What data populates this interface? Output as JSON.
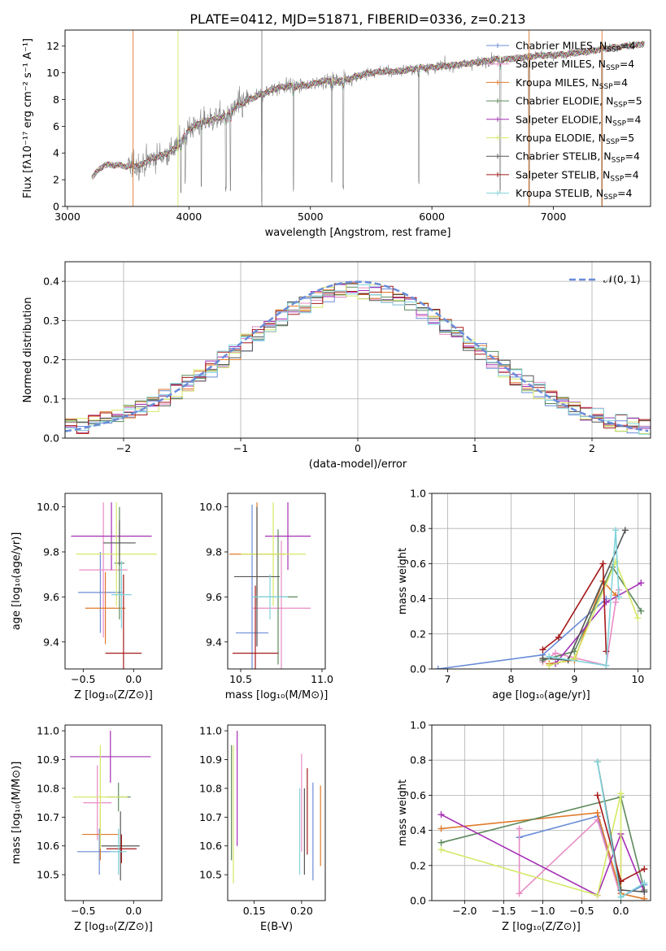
{
  "figure_title": "PLATE=0412, MJD=51871, FIBERID=0336, z=0.213",
  "colors": {
    "Chabrier MILES": "#6a8cd8",
    "Salpeter MILES": "#e88cc4",
    "Kroupa MILES": "#e07a2a",
    "Chabrier ELODIE": "#5d8a5d",
    "Salpeter ELODIE": "#a52fb5",
    "Kroupa ELODIE": "#d4e866",
    "Chabrier STELIB": "#555555",
    "Salpeter STELIB": "#a51a1a",
    "Kroupa STELIB": "#80d4dc",
    "data": "#808080",
    "gaussian": "#6a8cd8"
  },
  "chart_data": [
    {
      "id": "spectrum",
      "type": "line",
      "xlabel": "wavelength [Angstrom, rest frame]",
      "ylabel": "Flux [fλ10⁻¹⁷ erg cm⁻² s⁻¹ A⁻¹]",
      "xlim": [
        2980,
        7800
      ],
      "ylim": [
        0,
        13.2
      ],
      "xticks": [
        3000,
        4000,
        5000,
        6000,
        7000
      ],
      "yticks": [
        0,
        2,
        4,
        6,
        8,
        10,
        12
      ],
      "grid": false,
      "legend_position": "right",
      "legend": [
        {
          "label": "Chabrier MILES, N",
          "sub": "SSP",
          "tail": "=4",
          "model": "Chabrier MILES"
        },
        {
          "label": "Salpeter MILES, N",
          "sub": "SSP",
          "tail": "=4",
          "model": "Salpeter MILES"
        },
        {
          "label": "Kroupa MILES, N",
          "sub": "SSP",
          "tail": "=4",
          "model": "Kroupa MILES"
        },
        {
          "label": "Chabrier ELODIE, N",
          "sub": "SSP",
          "tail": "=5",
          "model": "Chabrier ELODIE"
        },
        {
          "label": "Salpeter ELODIE, N",
          "sub": "SSP",
          "tail": "=4",
          "model": "Salpeter ELODIE"
        },
        {
          "label": "Kroupa ELODIE, N",
          "sub": "SSP",
          "tail": "=5",
          "model": "Kroupa ELODIE"
        },
        {
          "label": "Chabrier STELIB, N",
          "sub": "SSP",
          "tail": "=4",
          "model": "Chabrier STELIB"
        },
        {
          "label": "Salpeter STELIB, N",
          "sub": "SSP",
          "tail": "=4",
          "model": "Salpeter STELIB"
        },
        {
          "label": "Kroupa STELIB, N",
          "sub": "SSP",
          "tail": "=4",
          "model": "Kroupa STELIB"
        }
      ],
      "continuum": [
        [
          3200,
          2.2
        ],
        [
          3300,
          3.1
        ],
        [
          3400,
          3.1
        ],
        [
          3500,
          3.0
        ],
        [
          3600,
          3.1
        ],
        [
          3700,
          3.6
        ],
        [
          3800,
          3.9
        ],
        [
          3900,
          4.4
        ],
        [
          4000,
          5.8
        ],
        [
          4100,
          6.3
        ],
        [
          4200,
          6.5
        ],
        [
          4300,
          6.8
        ],
        [
          4400,
          7.5
        ],
        [
          4500,
          8.0
        ],
        [
          4600,
          8.4
        ],
        [
          4700,
          8.8
        ],
        [
          4800,
          9.0
        ],
        [
          4900,
          9.0
        ],
        [
          5000,
          9.1
        ],
        [
          5100,
          9.4
        ],
        [
          5200,
          9.4
        ],
        [
          5300,
          9.5
        ],
        [
          5400,
          9.8
        ],
        [
          5500,
          10.0
        ],
        [
          5600,
          10.1
        ],
        [
          5700,
          10.1
        ],
        [
          5800,
          10.2
        ],
        [
          5900,
          10.4
        ],
        [
          6000,
          10.4
        ],
        [
          6100,
          10.5
        ],
        [
          6200,
          10.6
        ],
        [
          6300,
          10.7
        ],
        [
          6400,
          10.8
        ],
        [
          6500,
          11.0
        ],
        [
          6600,
          11.0
        ],
        [
          6700,
          11.1
        ],
        [
          6800,
          11.2
        ],
        [
          6900,
          11.3
        ],
        [
          7000,
          11.3
        ],
        [
          7100,
          11.4
        ],
        [
          7200,
          11.5
        ],
        [
          7300,
          11.6
        ],
        [
          7400,
          11.8
        ],
        [
          7500,
          11.9
        ],
        [
          7600,
          12.0
        ],
        [
          7700,
          12.1
        ],
        [
          7750,
          12.2
        ]
      ],
      "absorption": [
        [
          3934,
          1.0
        ],
        [
          3969,
          1.5
        ],
        [
          4102,
          1.2
        ],
        [
          4304,
          1.0
        ],
        [
          4341,
          1.0
        ],
        [
          4600,
          0.0
        ],
        [
          4861,
          1.0
        ],
        [
          5175,
          1.5
        ],
        [
          5270,
          1.2
        ],
        [
          5893,
          1.5
        ],
        [
          6563,
          1.0
        ],
        [
          6800,
          0.2
        ],
        [
          7400,
          0.0
        ]
      ]
    },
    {
      "id": "residuals",
      "type": "histogram",
      "xlabel": "(data-model)/error",
      "ylabel": "Normed distribution",
      "xlim": [
        -2.5,
        2.5
      ],
      "ylim": [
        0,
        0.45
      ],
      "xticks": [
        -2,
        -1,
        0,
        1,
        2
      ],
      "yticks": [
        0.0,
        0.1,
        0.2,
        0.3,
        0.4
      ],
      "grid": true,
      "bin_width": 0.1,
      "legend": [
        {
          "label": "𝒩(0, 1)",
          "model": "gaussian"
        }
      ],
      "legend_position": "top-right"
    },
    {
      "id": "age_vs_Z",
      "type": "errorbar",
      "xlabel": "Z [log₁₀(Z/Z⊙)]",
      "ylabel": "age  [log₁₀(age/yr)]",
      "xlim": [
        -0.68,
        0.28
      ],
      "ylim": [
        9.28,
        10.06
      ],
      "xticks": [
        -0.5,
        0.0
      ],
      "yticks": [
        9.4,
        9.6,
        9.8,
        10.0
      ],
      "points": [
        {
          "model": "Chabrier MILES",
          "x": -0.33,
          "xerr": 0.22,
          "y": 9.62,
          "yerr": 0.18
        },
        {
          "model": "Salpeter MILES",
          "x": -0.3,
          "xerr": 0.24,
          "y": 9.72,
          "yerr": 0.3
        },
        {
          "model": "Kroupa MILES",
          "x": -0.28,
          "xerr": 0.2,
          "y": 9.55,
          "yerr": 0.16
        },
        {
          "model": "Chabrier ELODIE",
          "x": -0.14,
          "xerr": 0.05,
          "y": 9.75,
          "yerr": 0.25
        },
        {
          "model": "Salpeter ELODIE",
          "x": -0.22,
          "xerr": 0.4,
          "y": 9.87,
          "yerr": 0.15
        },
        {
          "model": "Kroupa ELODIE",
          "x": -0.17,
          "xerr": 0.4,
          "y": 9.79,
          "yerr": 0.23
        },
        {
          "model": "Chabrier STELIB",
          "x": -0.14,
          "xerr": 0.16,
          "y": 9.84,
          "yerr": 0.1
        },
        {
          "model": "Salpeter STELIB",
          "x": -0.1,
          "xerr": 0.18,
          "y": 9.35,
          "yerr": 0.35
        },
        {
          "model": "Kroupa STELIB",
          "x": -0.12,
          "xerr": 0.1,
          "y": 9.61,
          "yerr": 0.15
        }
      ]
    },
    {
      "id": "age_vs_mass",
      "type": "errorbar",
      "xlabel": "mass [log₁₀(M/M⊙)]",
      "ylabel": "",
      "xlim": [
        10.42,
        11.02
      ],
      "ylim": [
        9.28,
        10.06
      ],
      "xticks": [
        10.5,
        11.0
      ],
      "yticks": [
        9.4,
        9.6,
        9.8,
        10.0
      ],
      "points": [
        {
          "model": "Chabrier MILES",
          "x": 10.57,
          "xerr": 0.1,
          "y": 9.44,
          "yerr": 0.57
        },
        {
          "model": "Salpeter MILES",
          "x": 10.75,
          "xerr": 0.18,
          "y": 9.55,
          "yerr": 0.3
        },
        {
          "model": "Kroupa MILES",
          "x": 10.6,
          "xerr": 0.17,
          "y": 9.79,
          "yerr": 0.23
        },
        {
          "model": "Chabrier ELODIE",
          "x": 10.73,
          "xerr": 0.12,
          "y": 9.6,
          "yerr": 0.3
        },
        {
          "model": "Salpeter ELODIE",
          "x": 10.79,
          "xerr": 0.14,
          "y": 9.87,
          "yerr": 0.15
        },
        {
          "model": "Kroupa ELODIE",
          "x": 10.7,
          "xerr": 0.2,
          "y": 9.79,
          "yerr": 0.23
        },
        {
          "model": "Chabrier STELIB",
          "x": 10.6,
          "xerr": 0.14,
          "y": 9.69,
          "yerr": 0.31
        },
        {
          "model": "Salpeter STELIB",
          "x": 10.59,
          "xerr": 0.14,
          "y": 9.35,
          "yerr": 0.3
        },
        {
          "model": "Kroupa STELIB",
          "x": 10.68,
          "xerr": 0.11,
          "y": 9.6,
          "yerr": 0.1
        }
      ]
    },
    {
      "id": "massweight_vs_age",
      "type": "line",
      "xlabel": "age  [log₁₀(age/yr)]",
      "ylabel": "mass weight",
      "xlim": [
        6.75,
        10.2
      ],
      "ylim": [
        0,
        1.0
      ],
      "xticks": [
        7,
        8,
        9,
        10
      ],
      "yticks": [
        0.0,
        0.2,
        0.4,
        0.6,
        0.8,
        1.0
      ],
      "grid": true,
      "series": [
        {
          "model": "Chabrier MILES",
          "x": [
            6.85,
            8.5,
            9.5
          ],
          "y": [
            0.0,
            0.08,
            0.4
          ]
        },
        {
          "model": "Salpeter MILES",
          "x": [
            8.5,
            8.7,
            9.5,
            9.65,
            9.7
          ],
          "y": [
            0.04,
            0.09,
            0.02,
            0.38,
            0.45
          ]
        },
        {
          "model": "Kroupa MILES",
          "x": [
            8.6,
            9.0,
            9.45,
            9.65
          ],
          "y": [
            0.03,
            0.05,
            0.5,
            0.42
          ]
        },
        {
          "model": "Chabrier ELODIE",
          "x": [
            8.5,
            9.0,
            9.6,
            10.05
          ],
          "y": [
            0.05,
            0.1,
            0.58,
            0.33
          ]
        },
        {
          "model": "Salpeter ELODIE",
          "x": [
            8.7,
            9.5,
            10.05
          ],
          "y": [
            0.03,
            0.38,
            0.49
          ]
        },
        {
          "model": "Kroupa ELODIE",
          "x": [
            8.6,
            9.0,
            9.65,
            10.0
          ],
          "y": [
            0.02,
            0.06,
            0.61,
            0.29
          ]
        },
        {
          "model": "Chabrier STELIB",
          "x": [
            8.5,
            8.9,
            9.8
          ],
          "y": [
            0.06,
            0.05,
            0.79
          ]
        },
        {
          "model": "Salpeter STELIB",
          "x": [
            8.5,
            8.75,
            9.45,
            9.5
          ],
          "y": [
            0.11,
            0.18,
            0.6,
            0.1
          ]
        },
        {
          "model": "Kroupa STELIB",
          "x": [
            8.6,
            9.5,
            9.65,
            9.7
          ],
          "y": [
            0.07,
            0.02,
            0.79,
            0.41
          ]
        }
      ]
    },
    {
      "id": "mass_vs_Z",
      "type": "errorbar",
      "xlabel": "Z [log₁₀(Z/Z⊙)]",
      "ylabel": "mass [log₁₀(M/M⊙)]",
      "xlim": [
        -0.68,
        0.28
      ],
      "ylim": [
        10.41,
        11.02
      ],
      "xticks": [
        -0.5,
        0.0
      ],
      "yticks": [
        10.5,
        10.6,
        10.7,
        10.8,
        10.9,
        11.0
      ],
      "points": [
        {
          "model": "Chabrier MILES",
          "x": -0.34,
          "xerr": 0.22,
          "y": 10.58,
          "yerr": 0.08
        },
        {
          "model": "Salpeter MILES",
          "x": -0.36,
          "xerr": 0.14,
          "y": 10.75,
          "yerr": 0.13
        },
        {
          "model": "Kroupa MILES",
          "x": -0.33,
          "xerr": 0.18,
          "y": 10.64,
          "yerr": 0.09
        },
        {
          "model": "Chabrier ELODIE",
          "x": -0.15,
          "xerr": 0.12,
          "y": 10.77,
          "yerr": 0.05
        },
        {
          "model": "Salpeter ELODIE",
          "x": -0.23,
          "xerr": 0.4,
          "y": 10.91,
          "yerr": 0.09
        },
        {
          "model": "Kroupa ELODIE",
          "x": -0.33,
          "xerr": 0.27,
          "y": 10.77,
          "yerr": 0.18
        },
        {
          "model": "Chabrier STELIB",
          "x": -0.13,
          "xerr": 0.19,
          "y": 10.6,
          "yerr": 0.12
        },
        {
          "model": "Salpeter STELIB",
          "x": -0.12,
          "xerr": 0.15,
          "y": 10.59,
          "yerr": 0.05
        },
        {
          "model": "Kroupa STELIB",
          "x": -0.15,
          "xerr": 0.08,
          "y": 10.58,
          "yerr": 0.08
        }
      ]
    },
    {
      "id": "mass_vs_ebv",
      "type": "errorbar",
      "xlabel": "E(B-V)",
      "ylabel": "",
      "xlim": [
        0.122,
        0.225
      ],
      "ylim": [
        10.41,
        11.02
      ],
      "xticks": [
        0.15,
        0.2
      ],
      "yticks": [
        10.5,
        10.6,
        10.7,
        10.8,
        10.9,
        11.0
      ],
      "points": [
        {
          "model": "Chabrier MILES",
          "x": 0.212,
          "y": 10.65,
          "yerr": 0.17
        },
        {
          "model": "Salpeter MILES",
          "x": 0.2,
          "y": 10.75,
          "yerr": 0.17
        },
        {
          "model": "Kroupa MILES",
          "x": 0.22,
          "y": 10.67,
          "yerr": 0.14
        },
        {
          "model": "Chabrier ELODIE",
          "x": 0.126,
          "y": 10.75,
          "yerr": 0.2
        },
        {
          "model": "Salpeter ELODIE",
          "x": 0.132,
          "y": 10.8,
          "yerr": 0.2
        },
        {
          "model": "Kroupa ELODIE",
          "x": 0.128,
          "y": 10.71,
          "yerr": 0.24
        },
        {
          "model": "Chabrier STELIB",
          "x": 0.203,
          "y": 10.65,
          "yerr": 0.15
        },
        {
          "model": "Salpeter STELIB",
          "x": 0.206,
          "y": 10.72,
          "yerr": 0.15
        },
        {
          "model": "Kroupa STELIB",
          "x": 0.198,
          "y": 10.65,
          "yerr": 0.15
        }
      ]
    },
    {
      "id": "massweight_vs_Z",
      "type": "line",
      "xlabel": "Z [log₁₀(Z/Z⊙)]",
      "ylabel": "mass weight",
      "xlim": [
        -2.42,
        0.38
      ],
      "ylim": [
        0,
        1.0
      ],
      "xticks": [
        -2.0,
        -1.5,
        -1.0,
        -0.5,
        0.0
      ],
      "yticks": [
        0.0,
        0.2,
        0.4,
        0.6,
        0.8,
        1.0
      ],
      "grid": true,
      "series": [
        {
          "model": "Chabrier MILES",
          "x": [
            -1.3,
            -0.3,
            0.0,
            0.3
          ],
          "y": [
            0.36,
            0.48,
            0.02,
            0.09
          ]
        },
        {
          "model": "Salpeter MILES",
          "x": [
            -1.3,
            -1.3,
            -0.3,
            0.0,
            0.0
          ],
          "y": [
            0.41,
            0.04,
            0.46,
            0.02,
            0.38
          ]
        },
        {
          "model": "Kroupa MILES",
          "x": [
            -2.3,
            -0.3,
            0.0,
            0.3
          ],
          "y": [
            0.41,
            0.5,
            0.04,
            0.01
          ]
        },
        {
          "model": "Chabrier ELODIE",
          "x": [
            -2.3,
            0.0,
            0.3
          ],
          "y": [
            0.33,
            0.59,
            0.06
          ]
        },
        {
          "model": "Salpeter ELODIE",
          "x": [
            -2.3,
            -0.3,
            0.0,
            0.3
          ],
          "y": [
            0.49,
            0.03,
            0.38,
            0.05
          ]
        },
        {
          "model": "Kroupa ELODIE",
          "x": [
            -2.3,
            -0.3,
            0.0,
            0.0
          ],
          "y": [
            0.29,
            0.03,
            0.61,
            0.02
          ]
        },
        {
          "model": "Chabrier STELIB",
          "x": [
            -0.3,
            0.0,
            0.3
          ],
          "y": [
            0.79,
            0.06,
            0.05
          ]
        },
        {
          "model": "Salpeter STELIB",
          "x": [
            -0.3,
            0.0,
            0.3
          ],
          "y": [
            0.6,
            0.11,
            0.18
          ]
        },
        {
          "model": "Kroupa STELIB",
          "x": [
            -0.3,
            0.0,
            0.3
          ],
          "y": [
            0.79,
            0.02,
            0.1
          ]
        }
      ]
    }
  ]
}
